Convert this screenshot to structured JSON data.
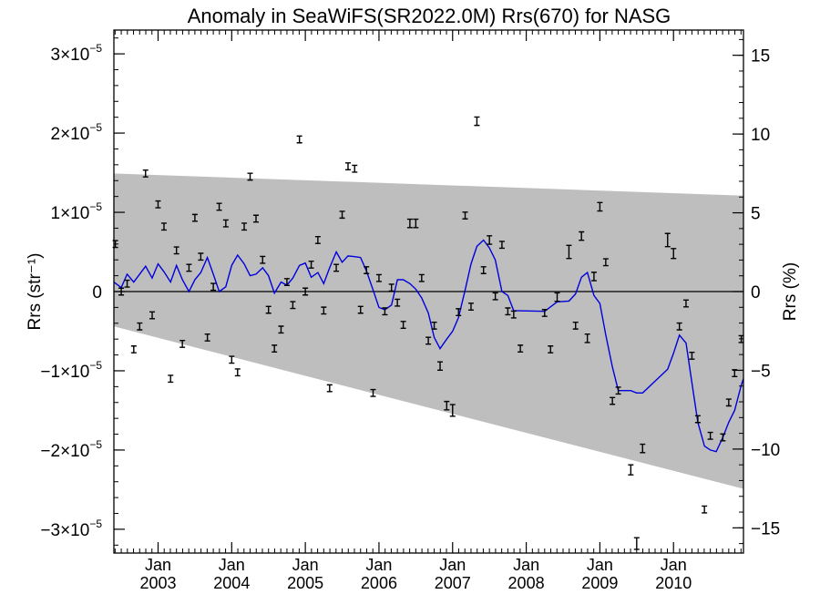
{
  "chart_data": {
    "type": "scatter",
    "title": "Anomaly in SeaWiFS(SR2022.0M) Rrs(670) for NASG",
    "ylabel_left": "Rrs (str⁻¹)",
    "ylabel_right": "Rrs (%)",
    "xlim": [
      2002.4,
      2010.95
    ],
    "ylim": [
      -3.3e-05,
      3.3e-05
    ],
    "ylim_right": [
      -16.6,
      16.6
    ],
    "x_ticks": [
      {
        "month": "Jan",
        "year": "2003",
        "x": 2003.0
      },
      {
        "month": "Jan",
        "year": "2004",
        "x": 2004.0
      },
      {
        "month": "Jan",
        "year": "2005",
        "x": 2005.0
      },
      {
        "month": "Jan",
        "year": "2006",
        "x": 2006.0
      },
      {
        "month": "Jan",
        "year": "2007",
        "x": 2007.0
      },
      {
        "month": "Jan",
        "year": "2008",
        "x": 2008.0
      },
      {
        "month": "Jan",
        "year": "2009",
        "x": 2009.0
      },
      {
        "month": "Jan",
        "year": "2010",
        "x": 2010.0
      }
    ],
    "y_ticks_left": [
      {
        "mant": "3×10",
        "exp": "−5",
        "value": 3e-05
      },
      {
        "mant": "2×10",
        "exp": "−5",
        "value": 2e-05
      },
      {
        "mant": "1×10",
        "exp": "−5",
        "value": 1e-05
      },
      {
        "mant": "0",
        "exp": "",
        "value": 0
      },
      {
        "mant": "−1×10",
        "exp": "−5",
        "value": -1e-05
      },
      {
        "mant": "−2×10",
        "exp": "−5",
        "value": -2e-05
      },
      {
        "mant": "−3×10",
        "exp": "−5",
        "value": -3e-05
      }
    ],
    "y_ticks_right": [
      {
        "label": "15",
        "value": 15
      },
      {
        "label": "10",
        "value": 10
      },
      {
        "label": "5",
        "value": 5
      },
      {
        "label": "0",
        "value": 0
      },
      {
        "label": "−5",
        "value": -5
      },
      {
        "label": "−10",
        "value": -10
      },
      {
        "label": "−15",
        "value": -15
      }
    ],
    "band": {
      "x": [
        2002.4,
        2010.95
      ],
      "upper": [
        1.49e-05,
        1.21e-05
      ],
      "lower": [
        -4.4e-06,
        -2.49e-05
      ]
    },
    "points": [
      {
        "x": 2002.42,
        "y": 6e-06,
        "err": 2e-07
      },
      {
        "x": 2002.5,
        "y": 0.0,
        "err": 2e-07
      },
      {
        "x": 2002.58,
        "y": 1e-06,
        "err": 2e-07
      },
      {
        "x": 2002.67,
        "y": -7.3e-06,
        "err": 2e-07
      },
      {
        "x": 2002.75,
        "y": -4.4e-06,
        "err": 2e-07
      },
      {
        "x": 2002.83,
        "y": 1.49e-05,
        "err": 2e-07
      },
      {
        "x": 2002.92,
        "y": -3e-06,
        "err": 2e-07
      },
      {
        "x": 2003.0,
        "y": 1.1e-05,
        "err": 2e-07
      },
      {
        "x": 2003.08,
        "y": 8.2e-06,
        "err": 2e-07
      },
      {
        "x": 2003.17,
        "y": -1.1e-05,
        "err": 2e-07
      },
      {
        "x": 2003.25,
        "y": 5.2e-06,
        "err": 2e-07
      },
      {
        "x": 2003.33,
        "y": -6.6e-06,
        "err": 2e-07
      },
      {
        "x": 2003.42,
        "y": 3e-06,
        "err": 2e-07
      },
      {
        "x": 2003.5,
        "y": 9.3e-06,
        "err": 2e-07
      },
      {
        "x": 2003.58,
        "y": 4.4e-06,
        "err": 2e-07
      },
      {
        "x": 2003.67,
        "y": -5.8e-06,
        "err": 2e-07
      },
      {
        "x": 2003.75,
        "y": 6e-07,
        "err": 2e-07
      },
      {
        "x": 2003.83,
        "y": 1.07e-05,
        "err": 2e-07
      },
      {
        "x": 2003.92,
        "y": 8.6e-06,
        "err": 2e-07
      },
      {
        "x": 2004.0,
        "y": -8.6e-06,
        "err": 2e-07
      },
      {
        "x": 2004.08,
        "y": -1.02e-05,
        "err": 2e-07
      },
      {
        "x": 2004.17,
        "y": 8.2e-06,
        "err": 2e-07
      },
      {
        "x": 2004.25,
        "y": 1.45e-05,
        "err": 2e-07
      },
      {
        "x": 2004.33,
        "y": 9.2e-06,
        "err": 2e-07
      },
      {
        "x": 2004.42,
        "y": 4e-06,
        "err": 2e-07
      },
      {
        "x": 2004.5,
        "y": -2.3e-06,
        "err": 2e-07
      },
      {
        "x": 2004.58,
        "y": -7.2e-06,
        "err": 2e-07
      },
      {
        "x": 2004.67,
        "y": -4.8e-06,
        "err": 2e-07
      },
      {
        "x": 2004.75,
        "y": 1.2e-06,
        "err": 2e-07
      },
      {
        "x": 2004.83,
        "y": -1.7e-06,
        "err": 2e-07
      },
      {
        "x": 2004.92,
        "y": 1.92e-05,
        "err": 2e-07
      },
      {
        "x": 2005.0,
        "y": 0.0,
        "err": 2e-07
      },
      {
        "x": 2005.08,
        "y": 3.4e-06,
        "err": 2e-07
      },
      {
        "x": 2005.17,
        "y": 6.5e-06,
        "err": 2e-07
      },
      {
        "x": 2005.25,
        "y": -2.4e-06,
        "err": 2e-07
      },
      {
        "x": 2005.33,
        "y": -1.22e-05,
        "err": 2e-07
      },
      {
        "x": 2005.42,
        "y": 3e-06,
        "err": 2e-07
      },
      {
        "x": 2005.5,
        "y": 9.7e-06,
        "err": 2e-07
      },
      {
        "x": 2005.58,
        "y": 1.58e-05,
        "err": 2e-07
      },
      {
        "x": 2005.67,
        "y": 1.55e-05,
        "err": 2e-07
      },
      {
        "x": 2005.75,
        "y": -2.3e-06,
        "err": 2e-07
      },
      {
        "x": 2005.83,
        "y": 2.7e-06,
        "err": 2e-07
      },
      {
        "x": 2005.92,
        "y": -1.28e-05,
        "err": 2e-07
      },
      {
        "x": 2006.0,
        "y": 1.7e-06,
        "err": 2e-07
      },
      {
        "x": 2006.08,
        "y": -2.5e-06,
        "err": 2e-07
      },
      {
        "x": 2006.17,
        "y": 5e-07,
        "err": 2e-07
      },
      {
        "x": 2006.25,
        "y": -1.4e-06,
        "err": 2e-07
      },
      {
        "x": 2006.33,
        "y": -4.2e-06,
        "err": 2e-07
      },
      {
        "x": 2006.42,
        "y": 8.6e-06,
        "err": 3e-07
      },
      {
        "x": 2006.5,
        "y": 8.6e-06,
        "err": 3e-07
      },
      {
        "x": 2006.58,
        "y": 1.7e-06,
        "err": 2e-07
      },
      {
        "x": 2006.67,
        "y": -6.2e-06,
        "err": 2e-07
      },
      {
        "x": 2006.75,
        "y": -4.3e-06,
        "err": 2e-07
      },
      {
        "x": 2006.83,
        "y": -9.4e-06,
        "err": 3e-07
      },
      {
        "x": 2006.92,
        "y": -1.44e-05,
        "err": 3e-07
      },
      {
        "x": 2007.0,
        "y": -1.5e-05,
        "err": 5e-07
      },
      {
        "x": 2007.08,
        "y": -2.6e-06,
        "err": 2e-07
      },
      {
        "x": 2007.17,
        "y": 9.6e-06,
        "err": 2e-07
      },
      {
        "x": 2007.25,
        "y": -1.9e-06,
        "err": 2e-07
      },
      {
        "x": 2007.33,
        "y": 2.15e-05,
        "err": 3e-07
      },
      {
        "x": 2007.42,
        "y": 2.7e-06,
        "err": 2e-07
      },
      {
        "x": 2007.5,
        "y": 6.5e-06,
        "err": 3e-07
      },
      {
        "x": 2007.58,
        "y": -6e-07,
        "err": 2e-07
      },
      {
        "x": 2007.67,
        "y": 5.9e-06,
        "err": 2e-07
      },
      {
        "x": 2007.75,
        "y": -2.5e-06,
        "err": 2e-07
      },
      {
        "x": 2007.83,
        "y": -2.9e-06,
        "err": 2e-07
      },
      {
        "x": 2007.92,
        "y": -7.2e-06,
        "err": 2e-07
      },
      {
        "x": 2008.25,
        "y": -2.7e-06,
        "err": 2e-07
      },
      {
        "x": 2008.33,
        "y": -7.3e-06,
        "err": 2e-07
      },
      {
        "x": 2008.42,
        "y": -7e-07,
        "err": 3e-07
      },
      {
        "x": 2008.58,
        "y": 5e-06,
        "err": 6e-07
      },
      {
        "x": 2008.67,
        "y": -4.3e-06,
        "err": 2e-07
      },
      {
        "x": 2008.75,
        "y": 7e-06,
        "err": 3e-07
      },
      {
        "x": 2008.83,
        "y": -5.9e-06,
        "err": 3e-07
      },
      {
        "x": 2008.92,
        "y": 1.9e-06,
        "err": 3e-07
      },
      {
        "x": 2009.0,
        "y": 1.07e-05,
        "err": 3e-07
      },
      {
        "x": 2009.08,
        "y": 3.7e-06,
        "err": 2e-07
      },
      {
        "x": 2009.17,
        "y": -1.38e-05,
        "err": 2e-07
      },
      {
        "x": 2009.25,
        "y": -1.25e-05,
        "err": 2e-07
      },
      {
        "x": 2009.42,
        "y": -2.25e-05,
        "err": 4e-07
      },
      {
        "x": 2009.5,
        "y": -3.18e-05,
        "err": 5e-07
      },
      {
        "x": 2009.58,
        "y": -1.98e-05,
        "err": 3e-07
      },
      {
        "x": 2009.92,
        "y": 6.5e-06,
        "err": 6e-07
      },
      {
        "x": 2010.0,
        "y": 4.8e-06,
        "err": 4e-07
      },
      {
        "x": 2010.08,
        "y": -4.4e-06,
        "err": 2e-07
      },
      {
        "x": 2010.17,
        "y": -1.5e-06,
        "err": 2e-07
      },
      {
        "x": 2010.25,
        "y": -8.1e-06,
        "err": 2e-07
      },
      {
        "x": 2010.33,
        "y": -1.61e-05,
        "err": 2e-07
      },
      {
        "x": 2010.42,
        "y": -2.75e-05,
        "err": 2e-07
      },
      {
        "x": 2010.5,
        "y": -1.82e-05,
        "err": 2e-07
      },
      {
        "x": 2010.67,
        "y": -1.84e-05,
        "err": 2e-07
      },
      {
        "x": 2010.75,
        "y": -1.4e-05,
        "err": 2e-07
      },
      {
        "x": 2010.83,
        "y": -1.03e-05,
        "err": 2e-07
      },
      {
        "x": 2010.92,
        "y": -6e-06,
        "err": 2e-07
      }
    ],
    "smooth_line": {
      "x": [
        2002.4,
        2002.5,
        2002.58,
        2002.67,
        2002.75,
        2002.83,
        2002.92,
        2003.0,
        2003.08,
        2003.17,
        2003.25,
        2003.33,
        2003.42,
        2003.5,
        2003.58,
        2003.67,
        2003.75,
        2003.83,
        2003.92,
        2004.0,
        2004.08,
        2004.17,
        2004.25,
        2004.33,
        2004.42,
        2004.5,
        2004.58,
        2004.67,
        2004.75,
        2004.83,
        2004.92,
        2005.0,
        2005.08,
        2005.17,
        2005.25,
        2005.33,
        2005.42,
        2005.5,
        2005.58,
        2005.67,
        2005.75,
        2005.83,
        2005.92,
        2006.0,
        2006.08,
        2006.17,
        2006.25,
        2006.33,
        2006.42,
        2006.5,
        2006.58,
        2006.67,
        2006.75,
        2006.83,
        2006.92,
        2007.0,
        2007.08,
        2007.17,
        2007.25,
        2007.33,
        2007.42,
        2007.5,
        2007.58,
        2007.67,
        2007.75,
        2007.83,
        2008.25,
        2008.42,
        2008.58,
        2008.67,
        2008.75,
        2008.83,
        2008.92,
        2009.0,
        2009.08,
        2009.17,
        2009.25,
        2009.42,
        2009.5,
        2009.58,
        2009.92,
        2010.0,
        2010.08,
        2010.17,
        2010.25,
        2010.33,
        2010.42,
        2010.5,
        2010.58,
        2010.67,
        2010.75,
        2010.83,
        2010.92,
        2010.95
      ],
      "y": [
        1.2e-06,
        5e-07,
        2.2e-06,
        1.2e-06,
        2.2e-06,
        3.2e-06,
        1.7e-06,
        3.5e-06,
        2.5e-06,
        1.2e-06,
        3.3e-06,
        1.5e-06,
        0.0,
        1.5e-06,
        2.4e-06,
        4.3e-06,
        2.2e-06,
        0.0,
        6e-07,
        3.3e-06,
        4.6e-06,
        3.5e-06,
        2e-06,
        2.2e-06,
        3e-06,
        2e-06,
        -2e-07,
        1.2e-06,
        8e-07,
        1.7e-06,
        3.3e-06,
        3.6e-06,
        1.8e-06,
        2.4e-06,
        1e-06,
        3e-06,
        5e-06,
        3.7e-06,
        4.5e-06,
        4.4e-06,
        4.3e-06,
        2.6e-06,
        2e-07,
        -2e-06,
        -2.3e-06,
        -1.7e-06,
        1.5e-06,
        1.5e-06,
        1e-06,
        3e-07,
        -8e-07,
        -2.7e-06,
        -5.8e-06,
        -7.2e-06,
        -6e-06,
        -5e-06,
        -3.3e-06,
        2e-07,
        3.5e-06,
        5.7e-06,
        6.5e-06,
        5.5e-06,
        4e-06,
        0.0,
        -5e-07,
        -2.4e-06,
        -2.5e-06,
        -1.3e-06,
        -1.2e-06,
        -3e-07,
        1.8e-06,
        2.4e-06,
        -5e-07,
        -1.5e-06,
        -5.5e-06,
        -9.5e-06,
        -1.25e-05,
        -1.25e-05,
        -1.28e-05,
        -1.28e-05,
        -9.8e-06,
        -7.8e-06,
        -5.5e-06,
        -6.5e-06,
        -1.15e-05,
        -1.65e-05,
        -1.95e-05,
        -2e-05,
        -2.02e-05,
        -1.84e-05,
        -1.65e-05,
        -1.5e-05,
        -1.18e-05,
        -1.1e-05
      ]
    },
    "zero_line": 0,
    "colors": {
      "band": "#bebebe",
      "line": "#0000dd",
      "points": "#000000",
      "background": "#ffffff"
    },
    "grid": false,
    "legend": "none"
  }
}
